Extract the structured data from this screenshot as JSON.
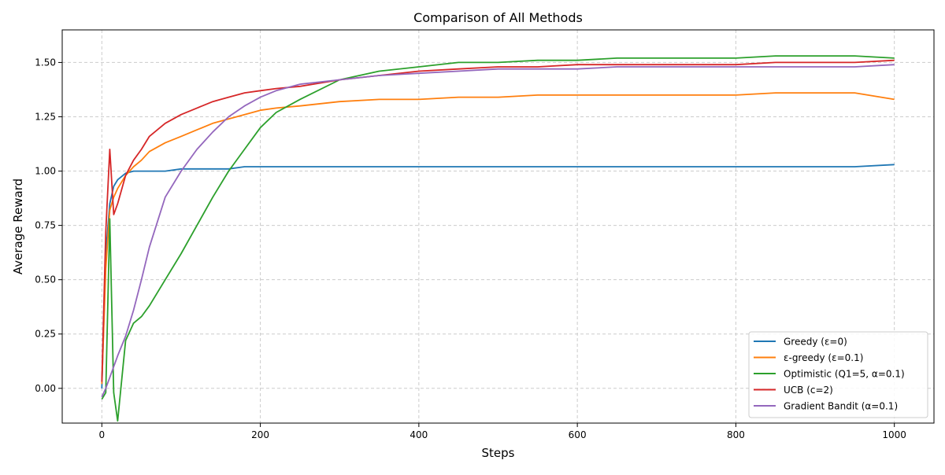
{
  "chart_data": {
    "type": "line",
    "title": "Comparison of All Methods",
    "xlabel": "Steps",
    "ylabel": "Average Reward",
    "xlim": [
      -50,
      1050
    ],
    "ylim": [
      -0.16,
      1.65
    ],
    "xticks": [
      0,
      200,
      400,
      600,
      800,
      1000
    ],
    "xtick_labels": [
      "0",
      "200",
      "400",
      "600",
      "800",
      "1000"
    ],
    "yticks": [
      0.0,
      0.25,
      0.5,
      0.75,
      1.0,
      1.25,
      1.5
    ],
    "ytick_labels": [
      "0.00",
      "0.25",
      "0.50",
      "0.75",
      "1.00",
      "1.25",
      "1.50"
    ],
    "grid": true,
    "legend_position": "bottom-right",
    "x": [
      0,
      5,
      10,
      15,
      20,
      30,
      40,
      50,
      60,
      80,
      100,
      120,
      140,
      160,
      180,
      200,
      220,
      250,
      300,
      350,
      400,
      450,
      500,
      550,
      600,
      650,
      700,
      750,
      800,
      850,
      900,
      950,
      1000
    ],
    "series": [
      {
        "name": "Greedy (ε=0)",
        "color": "#1f77b4",
        "values": [
          0.0,
          0.62,
          0.85,
          0.93,
          0.96,
          0.99,
          1.0,
          1.0,
          1.0,
          1.0,
          1.01,
          1.01,
          1.01,
          1.01,
          1.02,
          1.02,
          1.02,
          1.02,
          1.02,
          1.02,
          1.02,
          1.02,
          1.02,
          1.02,
          1.02,
          1.02,
          1.02,
          1.02,
          1.02,
          1.02,
          1.02,
          1.02,
          1.03
        ]
      },
      {
        "name": "ε-greedy (ε=0.1)",
        "color": "#ff7f0e",
        "values": [
          0.02,
          0.55,
          0.82,
          0.88,
          0.92,
          0.98,
          1.02,
          1.05,
          1.09,
          1.13,
          1.16,
          1.19,
          1.22,
          1.24,
          1.26,
          1.28,
          1.29,
          1.3,
          1.32,
          1.33,
          1.33,
          1.34,
          1.34,
          1.35,
          1.35,
          1.35,
          1.35,
          1.35,
          1.35,
          1.36,
          1.36,
          1.36,
          1.33
        ]
      },
      {
        "name": "Optimistic (Q1=5, α=0.1)",
        "color": "#2ca02c",
        "values": [
          -0.05,
          -0.02,
          0.78,
          -0.02,
          -0.15,
          0.22,
          0.3,
          0.33,
          0.38,
          0.5,
          0.62,
          0.75,
          0.88,
          1.0,
          1.1,
          1.2,
          1.27,
          1.33,
          1.42,
          1.46,
          1.48,
          1.5,
          1.5,
          1.51,
          1.51,
          1.52,
          1.52,
          1.52,
          1.52,
          1.53,
          1.53,
          1.53,
          1.52
        ]
      },
      {
        "name": "UCB (c=2)",
        "color": "#d62728",
        "values": [
          0.03,
          0.72,
          1.1,
          0.8,
          0.85,
          0.98,
          1.05,
          1.1,
          1.16,
          1.22,
          1.26,
          1.29,
          1.32,
          1.34,
          1.36,
          1.37,
          1.38,
          1.39,
          1.42,
          1.44,
          1.46,
          1.47,
          1.48,
          1.48,
          1.49,
          1.49,
          1.49,
          1.49,
          1.49,
          1.5,
          1.5,
          1.5,
          1.51
        ]
      },
      {
        "name": "Gradient Bandit (α=0.1)",
        "color": "#9467bd",
        "values": [
          -0.04,
          0.0,
          0.05,
          0.1,
          0.15,
          0.24,
          0.36,
          0.5,
          0.65,
          0.88,
          1.0,
          1.1,
          1.18,
          1.25,
          1.3,
          1.34,
          1.37,
          1.4,
          1.42,
          1.44,
          1.45,
          1.46,
          1.47,
          1.47,
          1.47,
          1.48,
          1.48,
          1.48,
          1.48,
          1.48,
          1.48,
          1.48,
          1.49
        ]
      }
    ]
  }
}
